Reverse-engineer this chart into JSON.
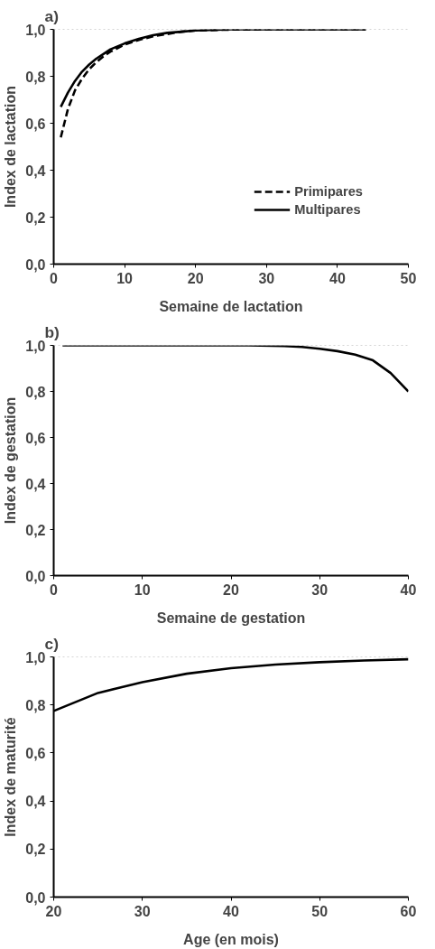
{
  "chart_data": [
    {
      "type": "line",
      "title": "a)",
      "xlabel": "Semaine de lactation",
      "ylabel": "Index de lactation",
      "xlim": [
        0,
        50
      ],
      "xticks": [
        0,
        10,
        20,
        30,
        40,
        50
      ],
      "ylim": [
        0,
        1
      ],
      "yticks": [
        {
          "value": 0,
          "label": "0,0"
        },
        {
          "value": 0.2,
          "label": "0,2"
        },
        {
          "value": 0.4,
          "label": "0,4"
        },
        {
          "value": 0.6,
          "label": "0,6"
        },
        {
          "value": 0.8,
          "label": "0,8"
        },
        {
          "value": 1,
          "label": "1,0"
        }
      ],
      "grid": false,
      "legend": "bottom right",
      "ref_lines": [
        {
          "axis": "y",
          "value": 1,
          "color": "#aaaaaa",
          "line_style": "dotted"
        }
      ],
      "series": [
        {
          "name": "Primipares",
          "color": "#000000",
          "line_style": "dashed",
          "x": [
            1,
            2,
            3,
            4,
            5,
            6,
            7,
            8,
            10,
            12,
            14,
            16,
            18,
            20,
            25,
            30,
            44
          ],
          "values": [
            0.54,
            0.66,
            0.74,
            0.79,
            0.83,
            0.86,
            0.885,
            0.905,
            0.935,
            0.955,
            0.97,
            0.98,
            0.99,
            0.995,
            0.999,
            1.0,
            1.0
          ]
        },
        {
          "name": "Multipares",
          "color": "#000000",
          "line_style": "solid",
          "x": [
            1,
            2,
            3,
            4,
            5,
            6,
            7,
            8,
            10,
            12,
            14,
            16,
            18,
            20,
            25,
            44
          ],
          "values": [
            0.67,
            0.73,
            0.78,
            0.82,
            0.85,
            0.875,
            0.895,
            0.915,
            0.94,
            0.96,
            0.975,
            0.985,
            0.99,
            0.995,
            1.0,
            1.0
          ]
        }
      ]
    },
    {
      "type": "line",
      "title": "b)",
      "xlabel": "Semaine de gestation",
      "ylabel": "Index de gestation",
      "xlim": [
        0,
        40
      ],
      "xticks": [
        0,
        10,
        20,
        30,
        40
      ],
      "ylim": [
        0,
        1
      ],
      "yticks": [
        {
          "value": 0,
          "label": "0,0"
        },
        {
          "value": 0.2,
          "label": "0,2"
        },
        {
          "value": 0.4,
          "label": "0,4"
        },
        {
          "value": 0.6,
          "label": "0,6"
        },
        {
          "value": 0.8,
          "label": "0,8"
        },
        {
          "value": 1,
          "label": "1,0"
        }
      ],
      "grid": false,
      "ref_lines": [
        {
          "axis": "y",
          "value": 1,
          "color": "#aaaaaa",
          "line_style": "dotted"
        }
      ],
      "series": [
        {
          "color": "#000000",
          "line_style": "solid",
          "x": [
            1,
            22,
            26,
            28,
            30,
            32,
            34,
            36,
            38,
            40
          ],
          "values": [
            1.0,
            1.0,
            0.997,
            0.993,
            0.985,
            0.975,
            0.96,
            0.935,
            0.88,
            0.8
          ]
        }
      ]
    },
    {
      "type": "line",
      "title": "c)",
      "xlabel": "Age (en mois)",
      "ylabel": "Index de maturité",
      "xlim": [
        20,
        60
      ],
      "xticks": [
        20,
        30,
        40,
        50,
        60
      ],
      "ylim": [
        0,
        1
      ],
      "yticks": [
        {
          "value": 0,
          "label": "0,0"
        },
        {
          "value": 0.2,
          "label": "0,2"
        },
        {
          "value": 0.4,
          "label": "0,4"
        },
        {
          "value": 0.6,
          "label": "0,6"
        },
        {
          "value": 0.8,
          "label": "0,8"
        },
        {
          "value": 1,
          "label": "1,0"
        }
      ],
      "grid": false,
      "ref_lines": [
        {
          "axis": "y",
          "value": 1,
          "color": "#aaaaaa",
          "line_style": "dotted"
        }
      ],
      "series": [
        {
          "color": "#000000",
          "line_style": "solid",
          "x": [
            20,
            25,
            30,
            35,
            40,
            45,
            50,
            55,
            60
          ],
          "values": [
            0.775,
            0.85,
            0.895,
            0.93,
            0.953,
            0.968,
            0.978,
            0.985,
            0.99
          ]
        }
      ]
    }
  ]
}
